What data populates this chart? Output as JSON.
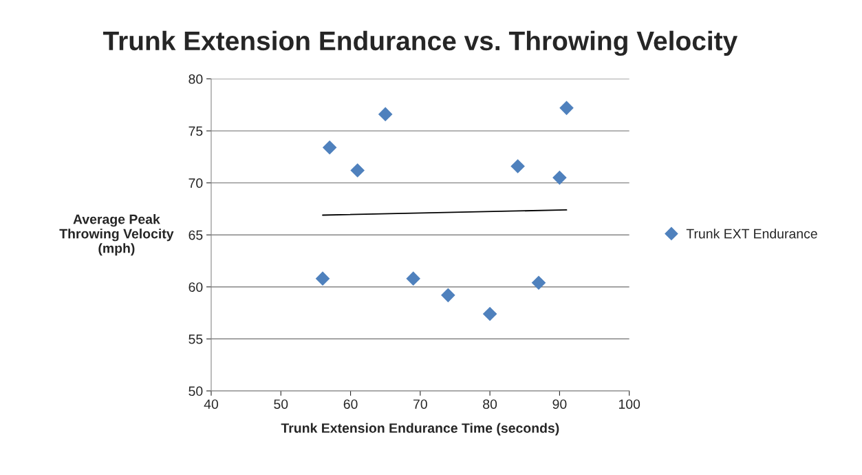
{
  "chart_data": {
    "type": "scatter",
    "title": "Trunk Extension Endurance vs. Throwing Velocity",
    "xlabel": "Trunk Extension Endurance Time (seconds)",
    "ylabel": "Average Peak\nThrowing Velocity\n(mph)",
    "series": [
      {
        "name": "Trunk EXT Endurance",
        "color": "#4f81bd",
        "marker": "diamond",
        "x": [
          56,
          57,
          61,
          65,
          69,
          74,
          80,
          84,
          87,
          90,
          91
        ],
        "values": [
          60.8,
          73.4,
          71.2,
          76.6,
          60.8,
          59.2,
          57.4,
          71.6,
          60.4,
          70.5,
          77.2
        ]
      },
      {
        "type": "line",
        "color": "#000000",
        "marker": "none",
        "x": [
          56,
          91
        ],
        "values": [
          66.9,
          67.4
        ]
      }
    ],
    "xlim": [
      40,
      100
    ],
    "xticks": [
      40,
      50,
      60,
      70,
      80,
      90,
      100
    ],
    "ylim": [
      50,
      80
    ],
    "yticks": [
      50,
      55,
      60,
      65,
      70,
      75,
      80
    ],
    "grid": "y",
    "legend": "right"
  }
}
